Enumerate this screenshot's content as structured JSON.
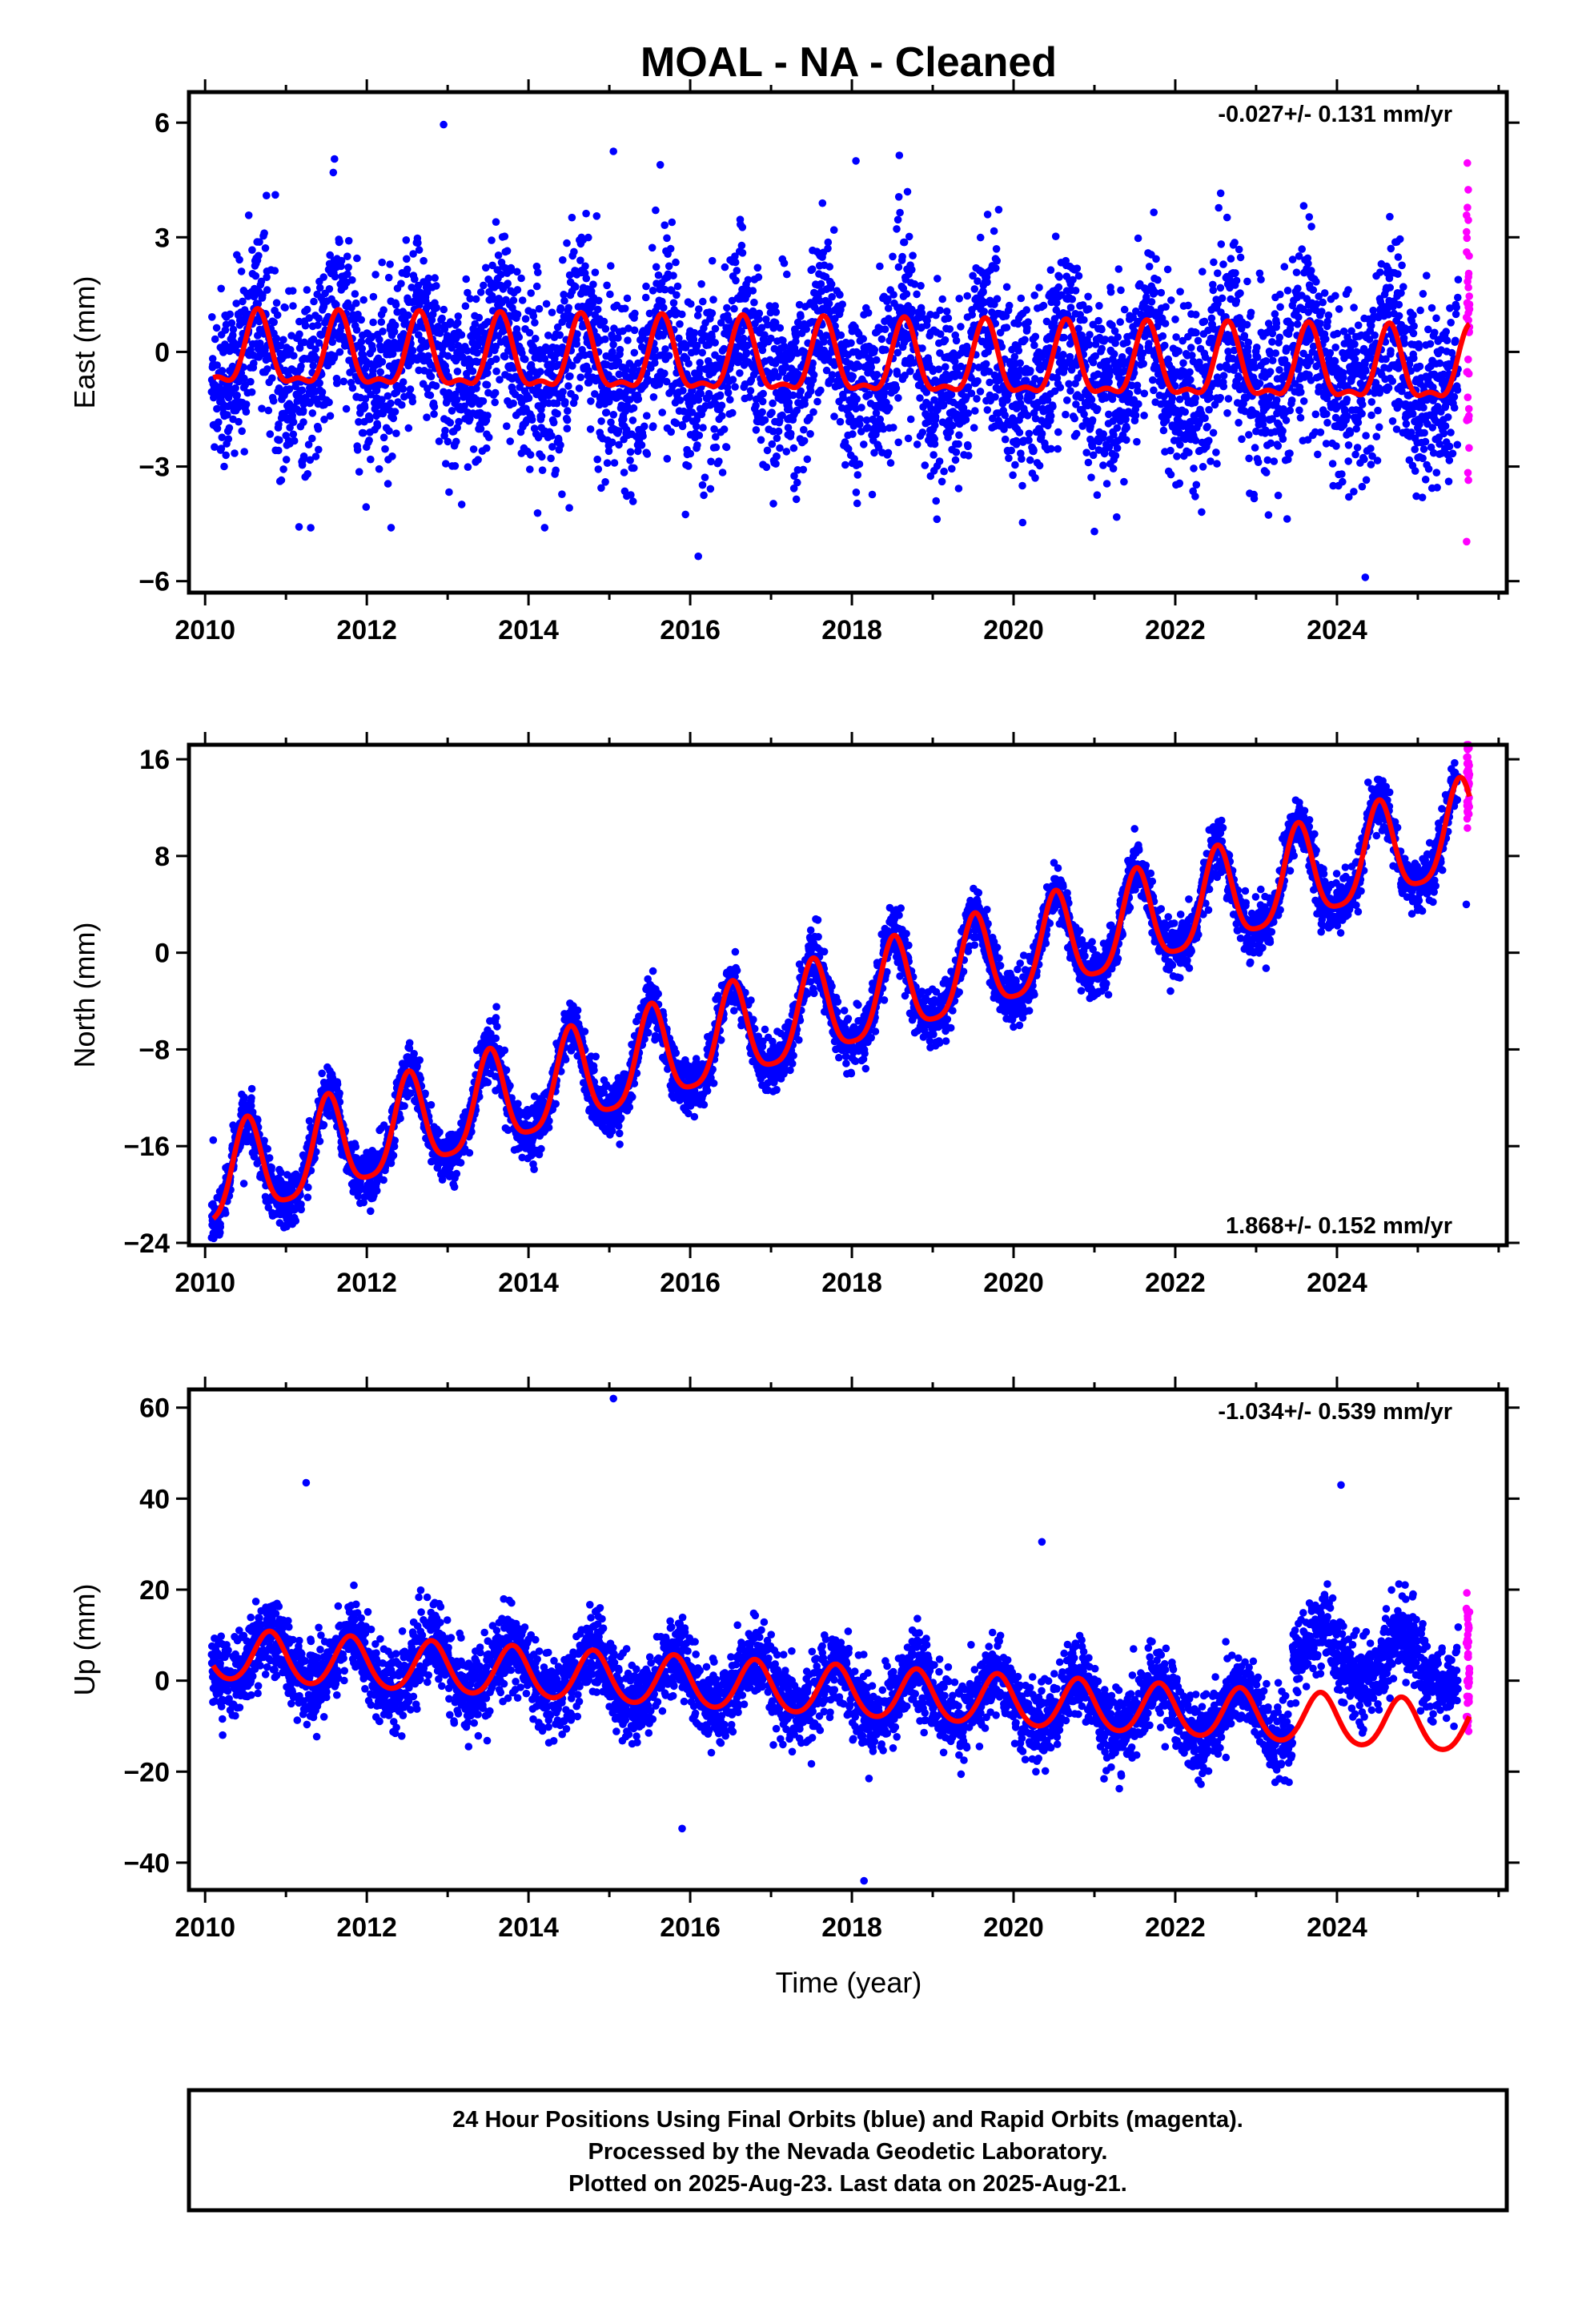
{
  "title": "MOAL  - NA - Cleaned",
  "colors": {
    "final_orbits": "#0000ff",
    "rapid_orbits": "#ff00ff",
    "model": "#ff0000",
    "frame": "#000000"
  },
  "xlabel": "Time (year)",
  "footer": {
    "line1": "24 Hour Positions Using Final Orbits (blue) and Rapid Orbits (magenta).",
    "line2": "Processed by the Nevada Geodetic Laboratory.",
    "line3": "Plotted on 2025-Aug-23. Last data on 2025-Aug-21."
  },
  "chart_data": [
    {
      "type": "scatter",
      "ylabel": "East (mm)",
      "rate": "-0.027+/- 0.131 mm/yr",
      "xlim": [
        2009.8,
        2026.1
      ],
      "ylim": [
        -6.3,
        6.8
      ],
      "xticks": [
        2010,
        2012,
        2014,
        2016,
        2018,
        2020,
        2022,
        2024
      ],
      "yticks": [
        -6,
        -3,
        0,
        3,
        6
      ],
      "ytick_labels": [
        "−6",
        "−3",
        "0",
        "3",
        "6"
      ],
      "grid": false,
      "model": {
        "offset": -0.1,
        "trend": -0.027,
        "annual_amp": 0.9,
        "annual_phase_peak": 0.65,
        "semiannual_amp": 0.35
      },
      "scatter_sd": 1.15,
      "final_range": [
        2010.08,
        2025.5
      ],
      "rapid_range": [
        2025.5,
        2025.64
      ],
      "outliers": [
        [
          2012.95,
          5.95
        ],
        [
          2015.05,
          5.25
        ],
        [
          2011.6,
          5.05
        ],
        [
          2018.05,
          5.0
        ],
        [
          2021.0,
          -4.7
        ],
        [
          2016.1,
          -5.35
        ],
        [
          2024.35,
          -5.9
        ],
        [
          2012.3,
          -4.6
        ],
        [
          2014.2,
          -4.6
        ]
      ]
    },
    {
      "type": "scatter",
      "ylabel": "North (mm)",
      "rate": "1.868+/- 0.152 mm/yr",
      "xlim": [
        2009.8,
        2026.1
      ],
      "ylim": [
        -24.2,
        17.2
      ],
      "xticks": [
        2010,
        2012,
        2014,
        2016,
        2018,
        2020,
        2022,
        2024
      ],
      "yticks": [
        -24,
        -16,
        -8,
        0,
        8,
        16
      ],
      "ytick_labels": [
        "−24",
        "−16",
        "−8",
        "0",
        "8",
        "16"
      ],
      "grid": false,
      "model": {
        "offset": -19.0,
        "trend": 1.868,
        "annual_amp": 3.9,
        "annual_phase_peak": 0.52,
        "semiannual_amp": 0.8
      },
      "scatter_sd": 1.1,
      "final_range": [
        2010.08,
        2025.5
      ],
      "rapid_range": [
        2025.5,
        2025.64
      ],
      "outliers": [
        [
          2010.1,
          -23.2
        ],
        [
          2010.12,
          -21.5
        ],
        [
          2010.1,
          -15.5
        ],
        [
          2025.6,
          4.0
        ]
      ]
    },
    {
      "type": "scatter",
      "ylabel": "Up (mm)",
      "rate": "-1.034+/- 0.539 mm/yr",
      "xlim": [
        2009.8,
        2026.1
      ],
      "ylim": [
        -46,
        64
      ],
      "xticks": [
        2010,
        2012,
        2014,
        2016,
        2018,
        2020,
        2022,
        2024
      ],
      "yticks": [
        -40,
        -20,
        0,
        20,
        40,
        60
      ],
      "ytick_labels": [
        "−40",
        "−20",
        "0",
        "20",
        "40",
        "60"
      ],
      "grid": false,
      "model": {
        "offset": 5.5,
        "trend": -1.034,
        "annual_amp": 5.5,
        "annual_phase_peak": 0.8,
        "semiannual_amp": 0.6
      },
      "scatter_sd": 4.2,
      "step": {
        "at": 2023.45,
        "size": 14.0
      },
      "final_range": [
        2010.08,
        2025.5
      ],
      "rapid_range": [
        2025.5,
        2025.64
      ],
      "outliers": [
        [
          2015.05,
          62.0
        ],
        [
          2011.25,
          43.5
        ],
        [
          2024.05,
          43.0
        ],
        [
          2020.35,
          30.5
        ],
        [
          2015.9,
          -32.5
        ],
        [
          2018.15,
          -44.0
        ]
      ]
    }
  ]
}
